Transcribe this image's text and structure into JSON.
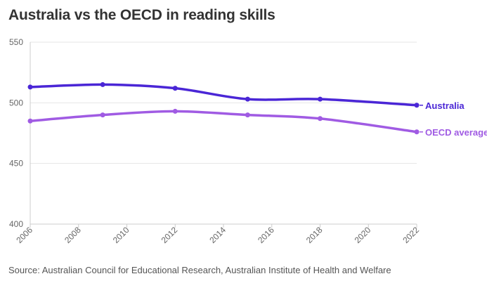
{
  "title": "Australia vs the OECD in reading skills",
  "source": "Source: Australian Council for Educational Research, Australian Institute of Health and Welfare",
  "chart_data": {
    "type": "line",
    "title": "Australia vs the OECD in reading skills",
    "xlabel": "",
    "ylabel": "",
    "xlim": [
      2006,
      2022
    ],
    "ylim": [
      400,
      550
    ],
    "x_ticks": [
      "2006",
      "2008",
      "2010",
      "2012",
      "2014",
      "2016",
      "2018",
      "2020",
      "2022"
    ],
    "y_ticks": [
      "400",
      "450",
      "500",
      "550"
    ],
    "grid": true,
    "legend": "direct labels at line ends (right)",
    "x": [
      2006,
      2009,
      2012,
      2015,
      2018,
      2022
    ],
    "series": [
      {
        "name": "Australia",
        "color": "#4a26d6",
        "values": [
          513,
          515,
          512,
          503,
          503,
          498
        ]
      },
      {
        "name": "OECD average",
        "color": "#a05be3",
        "values": [
          485,
          490,
          493,
          490,
          487,
          476
        ]
      }
    ]
  }
}
